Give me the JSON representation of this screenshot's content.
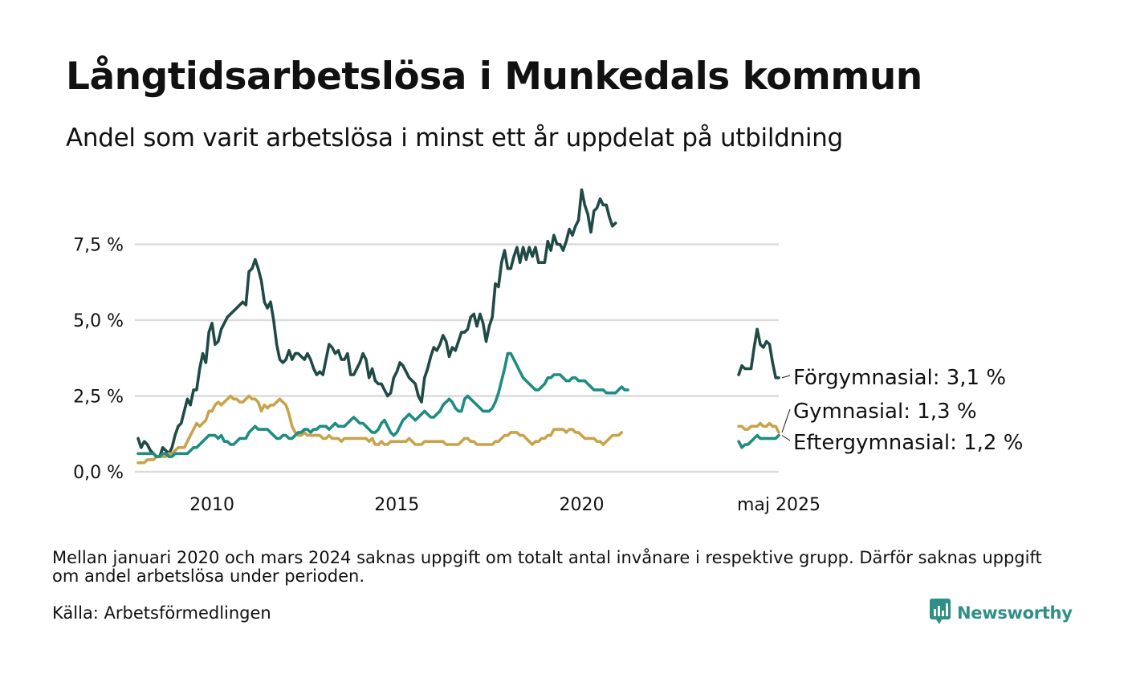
{
  "title": "Långtidsarbetslösa i Munkedals kommun",
  "subtitle": "Andel som varit arbetslösa i minst ett år uppdelat på utbildning",
  "note": "Mellan januari 2020 och mars 2024 saknas uppgift om totalt antal invånare i respektive grupp. Därför saknas uppgift om andel arbetslösa under perioden.",
  "source": "Källa: Arbetsförmedlingen",
  "brand": {
    "name": "Newsworthy",
    "icon": "newsworthy-logo-icon",
    "color": "#2d8f87"
  },
  "chart_data": {
    "type": "line",
    "title": "Långtidsarbetslösa i Munkedals kommun",
    "subtitle": "Andel som varit arbetslösa i minst ett år uppdelat på utbildning",
    "xlabel": "",
    "ylabel": "",
    "ylim": [
      0,
      9.5
    ],
    "xlim": [
      "2008-01",
      "2025-05"
    ],
    "grid": true,
    "legend": "direct-labels-right",
    "y_ticks": [
      {
        "value": 0,
        "label": "0,0 %"
      },
      {
        "value": 2.5,
        "label": "2,5 %"
      },
      {
        "value": 5,
        "label": "5,0 %"
      },
      {
        "value": 7.5,
        "label": "7,5 %"
      }
    ],
    "x_ticks": [
      {
        "value": "2010-01",
        "label": "2010"
      },
      {
        "value": "2015-01",
        "label": "2015"
      },
      {
        "value": "2020-01",
        "label": "2020"
      },
      {
        "value": "2025-05",
        "label": "maj 2025"
      }
    ],
    "series": [
      {
        "name": "Förgymnasial",
        "end_label": "Förgymnasial: 3,1 %",
        "color": "#1f4a45",
        "segments": [
          {
            "start": "2008-01",
            "values": [
              1.1,
              0.8,
              1.0,
              0.9,
              0.7,
              0.6,
              0.5,
              0.5,
              0.8,
              0.7,
              0.6,
              0.8,
              1.2,
              1.5,
              1.6,
              2.0,
              2.4,
              2.2,
              2.7,
              2.7,
              3.4,
              3.9,
              3.6,
              4.6,
              4.9,
              4.2,
              4.3,
              4.7,
              4.9,
              5.1,
              5.2,
              5.3,
              5.4,
              5.5,
              5.6,
              5.5,
              6.6,
              6.7,
              7.0,
              6.7,
              6.3,
              5.6,
              5.4,
              5.6,
              5.0,
              4.2,
              3.7,
              3.6,
              3.7,
              4.0,
              3.7,
              3.9,
              3.9,
              3.8,
              3.7,
              3.9,
              3.7,
              3.4,
              3.2,
              3.3,
              3.2,
              3.7,
              4.2,
              4.1,
              3.9,
              4.0,
              3.7,
              3.7,
              3.9,
              3.2,
              3.2,
              3.4,
              3.6,
              3.9,
              3.7,
              3.1,
              3.4,
              3.0,
              2.9,
              2.9,
              2.7,
              2.5,
              2.6,
              3.1,
              3.3,
              3.6,
              3.5,
              3.3,
              3.1,
              3.0,
              2.9,
              2.5,
              2.3,
              3.1,
              3.4,
              3.8,
              4.1,
              4.0,
              4.2,
              4.5,
              4.3,
              3.8,
              4.1,
              4.0,
              4.3,
              4.6,
              4.6,
              4.7,
              5.1,
              5.2,
              4.8,
              5.2,
              4.9,
              4.3,
              4.8,
              5.1,
              6.2,
              6.1,
              6.9,
              7.3,
              6.7,
              6.7,
              7.1,
              7.4,
              6.9,
              7.4,
              7.0,
              7.4,
              7.1,
              7.4,
              6.9,
              6.9,
              6.9,
              7.6,
              7.3,
              7.8,
              7.5,
              7.5,
              7.3,
              7.6,
              8.0,
              7.8,
              8.1,
              8.3,
              9.3,
              8.8,
              8.5,
              7.9,
              8.6,
              8.7,
              9.0,
              8.8,
              8.8,
              8.4,
              8.1,
              8.2
            ]
          },
          {
            "start": "2024-04",
            "values": [
              3.2,
              3.5,
              3.4,
              3.4,
              3.4,
              4.1,
              4.7,
              4.2,
              4.1,
              4.3,
              4.2,
              3.6,
              3.1,
              3.1
            ]
          }
        ]
      },
      {
        "name": "Gymnasial",
        "end_label": "Gymnasial: 1,3 %",
        "color": "#c9a34a",
        "segments": [
          {
            "start": "2008-01",
            "values": [
              0.3,
              0.3,
              0.3,
              0.4,
              0.4,
              0.4,
              0.5,
              0.5,
              0.5,
              0.5,
              0.6,
              0.6,
              0.7,
              0.8,
              0.8,
              0.8,
              1.0,
              1.2,
              1.4,
              1.6,
              1.5,
              1.6,
              1.7,
              2.0,
              2.0,
              2.2,
              2.3,
              2.2,
              2.3,
              2.4,
              2.5,
              2.4,
              2.4,
              2.3,
              2.3,
              2.4,
              2.5,
              2.4,
              2.4,
              2.3,
              2.0,
              2.2,
              2.1,
              2.2,
              2.2,
              2.3,
              2.4,
              2.3,
              2.2,
              1.9,
              1.5,
              1.3,
              1.2,
              1.2,
              1.3,
              1.2,
              1.2,
              1.2,
              1.2,
              1.2,
              1.1,
              1.1,
              1.2,
              1.1,
              1.1,
              1.1,
              1.0,
              1.1,
              1.1,
              1.1,
              1.1,
              1.1,
              1.1,
              1.1,
              1.1,
              1.0,
              1.1,
              0.9,
              0.9,
              1.0,
              0.9,
              0.9,
              1.0,
              1.0,
              1.0,
              1.0,
              1.0,
              1.0,
              1.1,
              1.0,
              0.9,
              0.9,
              0.9,
              1.0,
              1.0,
              1.0,
              1.0,
              1.0,
              1.0,
              1.0,
              0.9,
              0.9,
              0.9,
              0.9,
              0.9,
              1.0,
              1.1,
              1.1,
              1.0,
              1.0,
              0.9,
              0.9,
              0.9,
              0.9,
              0.9,
              0.9,
              1.0,
              1.0,
              1.1,
              1.2,
              1.2,
              1.3,
              1.3,
              1.3,
              1.2,
              1.2,
              1.1,
              1.0,
              0.9,
              1.0,
              1.0,
              1.1,
              1.1,
              1.2,
              1.2,
              1.4,
              1.4,
              1.4,
              1.4,
              1.3,
              1.4,
              1.4,
              1.3,
              1.3,
              1.2,
              1.1,
              1.1,
              1.1,
              1.1,
              1.0,
              1.0,
              0.9,
              1.0,
              1.1,
              1.2,
              1.2,
              1.2,
              1.3
            ]
          },
          {
            "start": "2024-04",
            "values": [
              1.5,
              1.5,
              1.4,
              1.4,
              1.5,
              1.5,
              1.5,
              1.6,
              1.5,
              1.5,
              1.6,
              1.5,
              1.5,
              1.3
            ]
          }
        ]
      },
      {
        "name": "Eftergymnasial",
        "end_label": "Eftergymnasial: 1,2 %",
        "color": "#1e8c82",
        "segments": [
          {
            "start": "2008-01",
            "values": [
              0.6,
              0.6,
              0.6,
              0.6,
              0.6,
              0.6,
              0.5,
              0.5,
              0.6,
              0.6,
              0.5,
              0.5,
              0.6,
              0.6,
              0.6,
              0.6,
              0.6,
              0.7,
              0.8,
              0.8,
              0.9,
              1.0,
              1.1,
              1.2,
              1.2,
              1.2,
              1.1,
              1.2,
              1.0,
              1.0,
              0.9,
              0.9,
              1.0,
              1.1,
              1.1,
              1.1,
              1.3,
              1.4,
              1.5,
              1.4,
              1.4,
              1.4,
              1.4,
              1.3,
              1.2,
              1.1,
              1.1,
              1.2,
              1.2,
              1.1,
              1.1,
              1.2,
              1.3,
              1.3,
              1.4,
              1.4,
              1.3,
              1.4,
              1.4,
              1.5,
              1.5,
              1.5,
              1.4,
              1.5,
              1.6,
              1.5,
              1.5,
              1.5,
              1.6,
              1.7,
              1.8,
              1.7,
              1.6,
              1.6,
              1.5,
              1.4,
              1.3,
              1.3,
              1.4,
              1.6,
              1.7,
              1.5,
              1.3,
              1.2,
              1.3,
              1.5,
              1.7,
              1.8,
              1.9,
              1.8,
              1.7,
              1.8,
              1.9,
              2.0,
              1.9,
              1.8,
              1.8,
              1.9,
              2.0,
              2.2,
              2.3,
              2.4,
              2.3,
              2.1,
              2.0,
              2.0,
              2.4,
              2.5,
              2.4,
              2.3,
              2.2,
              2.1,
              2.0,
              2.0,
              2.0,
              2.1,
              2.3,
              2.6,
              3.0,
              3.4,
              3.9,
              3.9,
              3.7,
              3.5,
              3.3,
              3.1,
              3.0,
              2.9,
              2.8,
              2.7,
              2.7,
              2.8,
              2.9,
              3.1,
              3.1,
              3.2,
              3.2,
              3.2,
              3.1,
              3.0,
              3.0,
              3.1,
              3.1,
              3.0,
              3.0,
              3.0,
              2.9,
              2.8,
              2.7,
              2.7,
              2.7,
              2.7,
              2.6,
              2.6,
              2.6,
              2.6,
              2.7,
              2.8,
              2.7,
              2.7
            ]
          },
          {
            "start": "2024-04",
            "values": [
              1.0,
              0.8,
              0.9,
              0.9,
              1.0,
              1.1,
              1.2,
              1.1,
              1.1,
              1.1,
              1.1,
              1.1,
              1.1,
              1.2
            ]
          }
        ]
      }
    ]
  }
}
